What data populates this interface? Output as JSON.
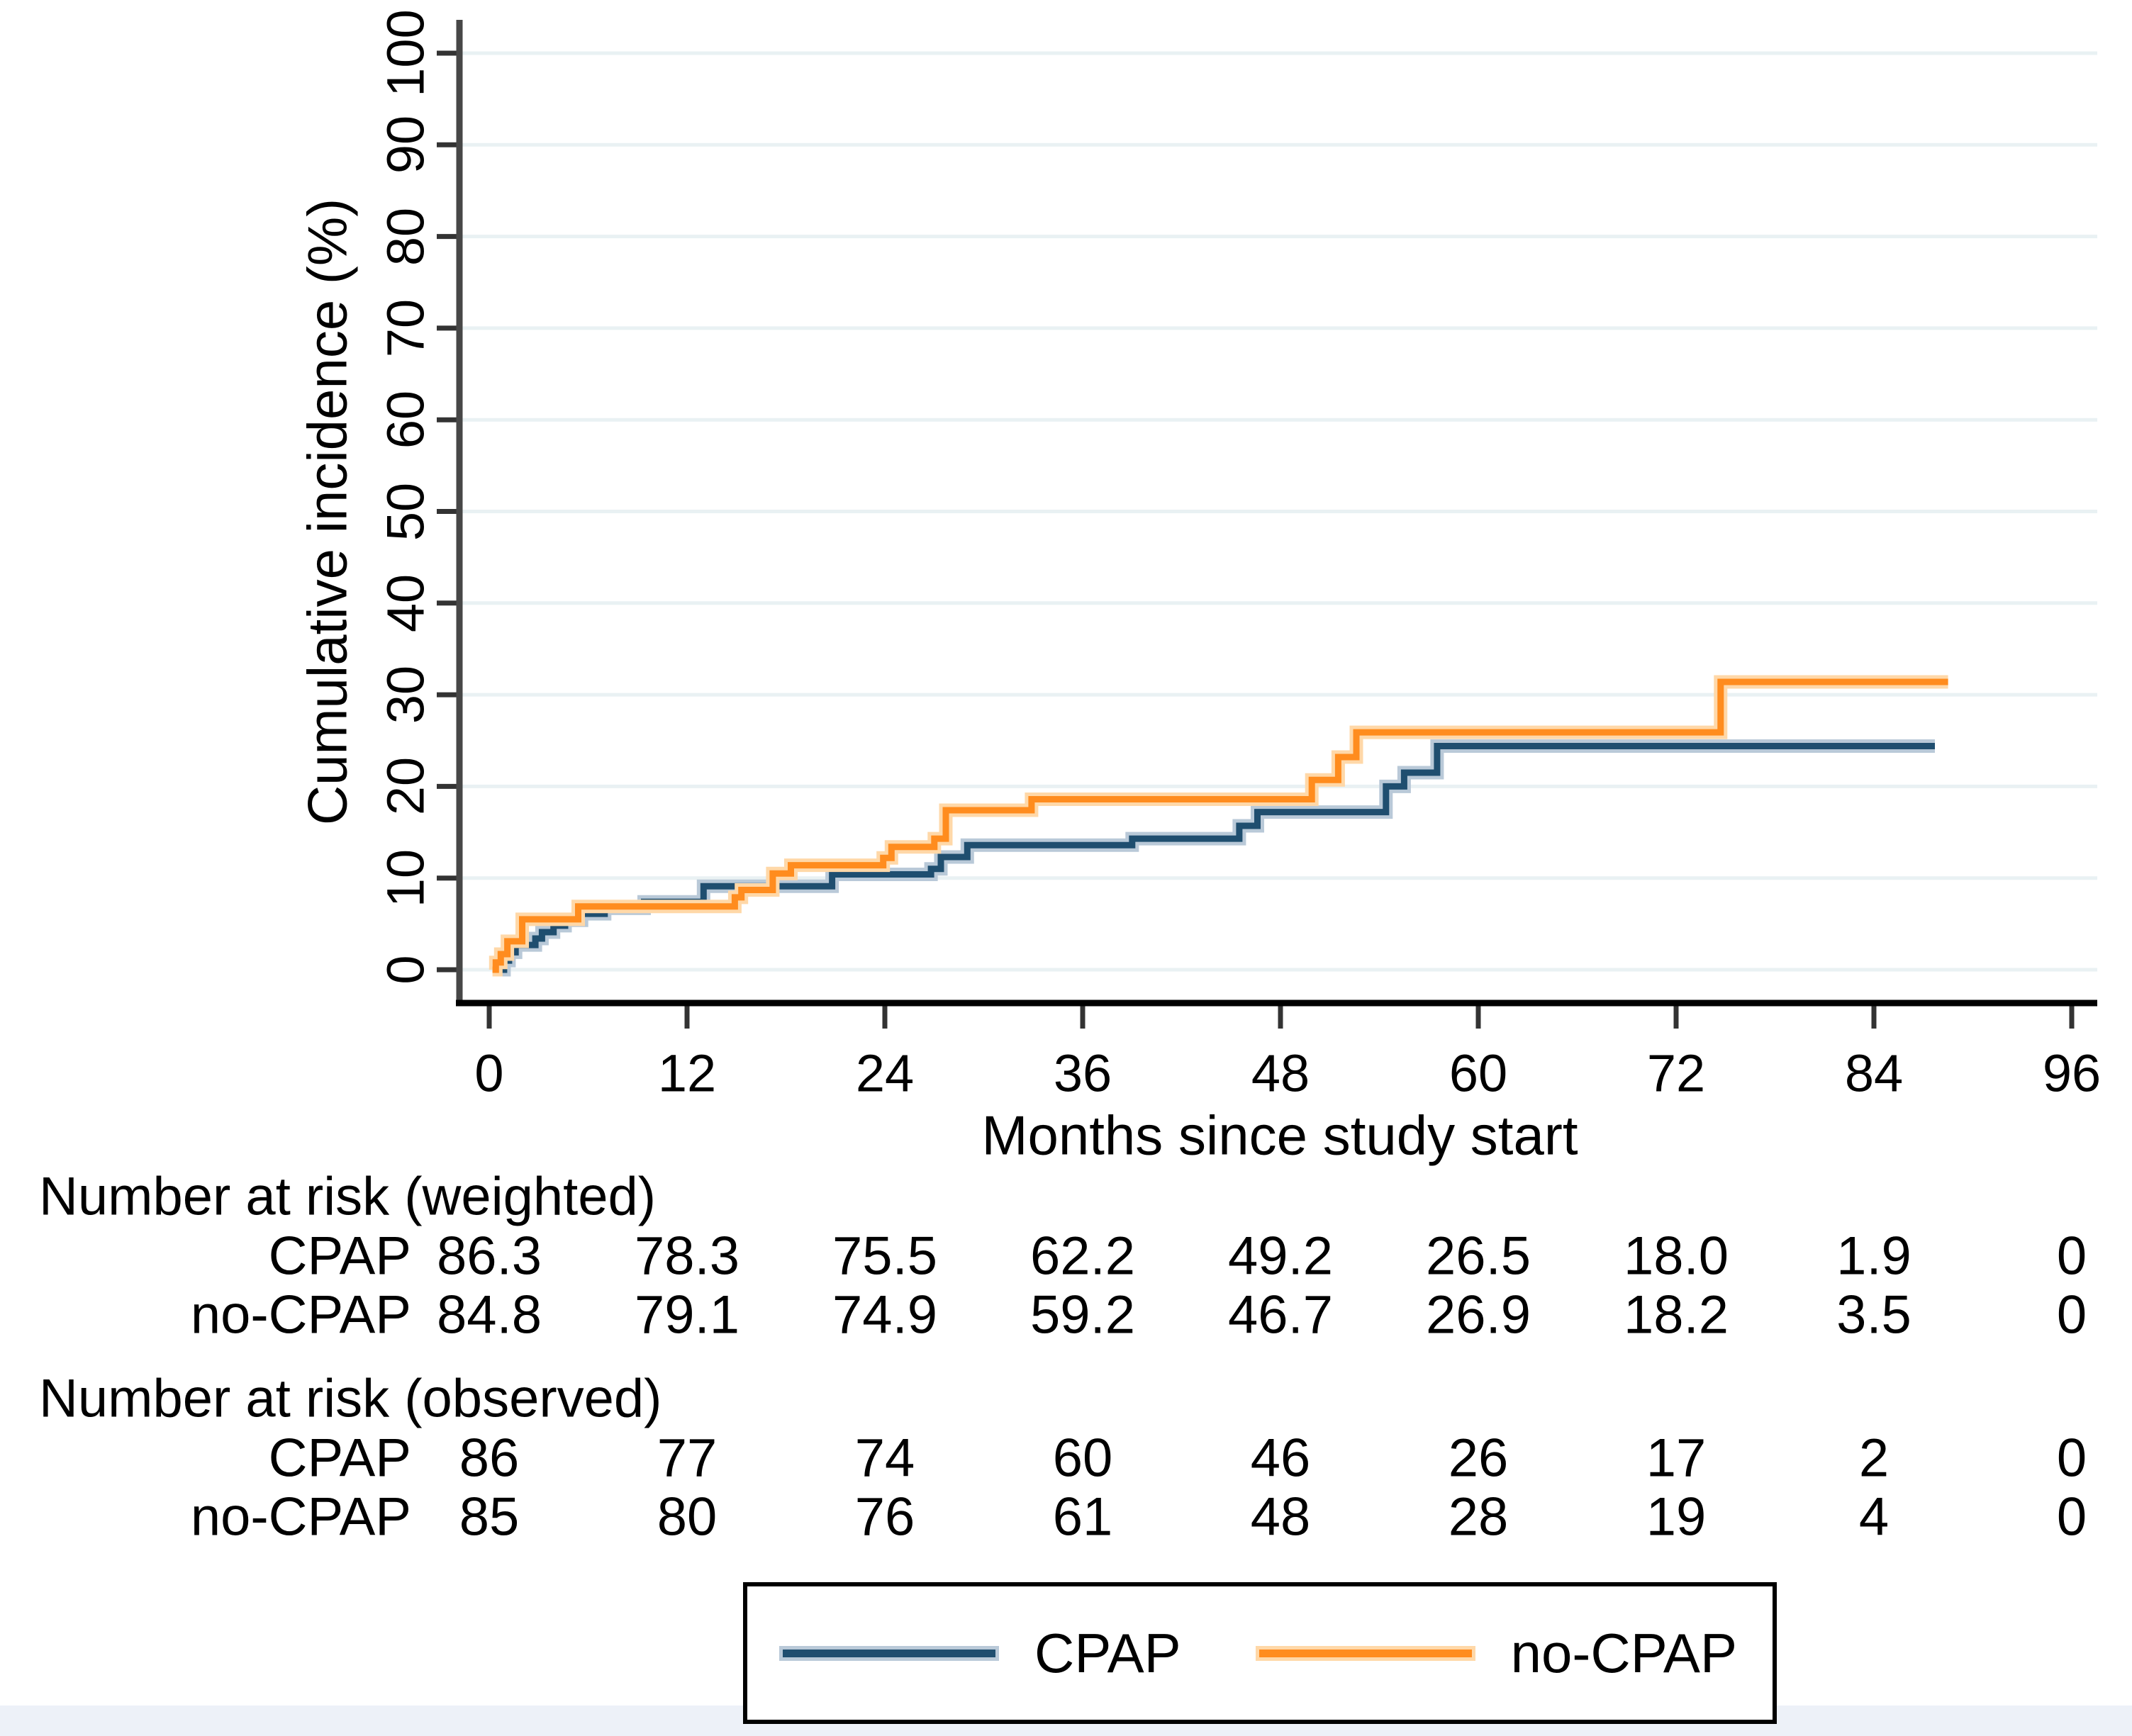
{
  "chart_data": {
    "type": "line",
    "subtype": "step-cumulative-incidence",
    "title": "",
    "xlabel": "Months since study start",
    "ylabel": "Cumulative incidence (%)",
    "xlim": [
      0,
      96
    ],
    "ylim": [
      0,
      100
    ],
    "xticks": [
      "0",
      "12",
      "24",
      "36",
      "48",
      "60",
      "72",
      "84",
      "96"
    ],
    "yticks": [
      "0",
      "10",
      "20",
      "30",
      "40",
      "50",
      "60",
      "70",
      "80",
      "90",
      "100"
    ],
    "grid": "horizontal-light",
    "legend_position": "bottom-box",
    "series": [
      {
        "name": "CPAP",
        "color": "#1F4E6F",
        "halo": "#B9C9D8",
        "steps": [
          [
            0.4,
            0
          ],
          [
            0.9,
            1.0
          ],
          [
            1.2,
            1.9
          ],
          [
            1.6,
            2.7
          ],
          [
            2.8,
            3.4
          ],
          [
            3.2,
            4.1
          ],
          [
            3.9,
            4.8
          ],
          [
            4.6,
            5.4
          ],
          [
            5.6,
            6.1
          ],
          [
            7.0,
            6.7
          ],
          [
            9.4,
            7.4
          ],
          [
            13.0,
            9.1
          ],
          [
            20.8,
            10.4
          ],
          [
            26.8,
            11.0
          ],
          [
            27.4,
            12.3
          ],
          [
            29.0,
            13.6
          ],
          [
            39.0,
            14.3
          ],
          [
            45.5,
            15.7
          ],
          [
            46.6,
            17.2
          ],
          [
            54.4,
            20.0
          ],
          [
            55.5,
            21.5
          ],
          [
            57.5,
            24.4
          ],
          [
            87.7,
            24.4
          ]
        ]
      },
      {
        "name": "no-CPAP",
        "color": "#FF8C1E",
        "halo": "#FFD8A8",
        "steps": [
          [
            0.2,
            0
          ],
          [
            0.4,
            0.8
          ],
          [
            0.7,
            1.7
          ],
          [
            1.1,
            3.1
          ],
          [
            2.0,
            5.5
          ],
          [
            5.4,
            6.9
          ],
          [
            14.9,
            7.9
          ],
          [
            15.3,
            8.7
          ],
          [
            17.2,
            10.5
          ],
          [
            18.3,
            11.4
          ],
          [
            23.9,
            12.2
          ],
          [
            24.4,
            13.4
          ],
          [
            27.0,
            14.3
          ],
          [
            27.7,
            17.4
          ],
          [
            32.9,
            18.6
          ],
          [
            49.9,
            20.7
          ],
          [
            51.5,
            23.2
          ],
          [
            52.6,
            25.9
          ],
          [
            74.7,
            31.4
          ],
          [
            88.5,
            31.4
          ]
        ]
      }
    ]
  },
  "risk_tables": [
    {
      "title": "Number at risk (weighted)",
      "rows": [
        {
          "label": "CPAP",
          "values": [
            "86.3",
            "78.3",
            "75.5",
            "62.2",
            "49.2",
            "26.5",
            "18.0",
            "1.9",
            "0"
          ]
        },
        {
          "label": "no-CPAP",
          "values": [
            "84.8",
            "79.1",
            "74.9",
            "59.2",
            "46.7",
            "26.9",
            "18.2",
            "3.5",
            "0"
          ]
        }
      ]
    },
    {
      "title": "Number at risk (observed)",
      "rows": [
        {
          "label": "CPAP",
          "values": [
            "86",
            "77",
            "74",
            "60",
            "46",
            "26",
            "17",
            "2",
            "0"
          ]
        },
        {
          "label": "no-CPAP",
          "values": [
            "85",
            "80",
            "76",
            "61",
            "48",
            "28",
            "19",
            "4",
            "0"
          ]
        }
      ]
    }
  ],
  "legend": {
    "items": [
      {
        "label": "CPAP",
        "color": "#1F4E6F",
        "halo": "#B9C9D8"
      },
      {
        "label": "no-CPAP",
        "color": "#FF8C1E",
        "halo": "#FFD8A8"
      }
    ]
  },
  "colors": {
    "gridline": "#E9F1F3",
    "y_axis": "#474747",
    "x_axis": "#000000",
    "tick": "#333333",
    "bottom_strip": "#edf1f8"
  }
}
